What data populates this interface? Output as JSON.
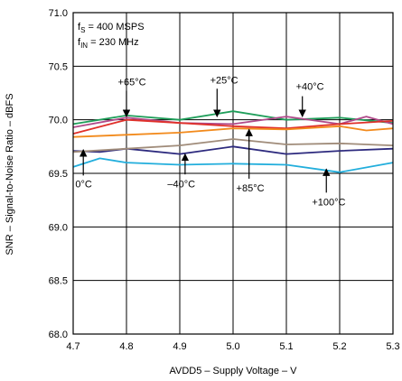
{
  "chart_data": {
    "type": "line",
    "xlabel": "AVDD5 – Supply Voltage – V",
    "ylabel": "SNR – Signal-to-Noise Ratio – dBFS",
    "xlim": [
      4.7,
      5.3
    ],
    "ylim": [
      68.0,
      71.0
    ],
    "x_ticks": [
      "4.7",
      "4.8",
      "4.9",
      "5.0",
      "5.1",
      "5.2",
      "5.3"
    ],
    "y_ticks": [
      "71.0",
      "70.5",
      "70.0",
      "69.5",
      "69.0",
      "68.5",
      "68.0"
    ],
    "grid": true,
    "conditions": {
      "fs": {
        "main": "f",
        "sub": "S",
        "rest": " = 400 MSPS"
      },
      "fin": {
        "main": "f",
        "sub": "IN",
        "rest": " = 230 MHz"
      }
    },
    "series": [
      {
        "name": "0°C",
        "color": "#2D2A7E",
        "x": [
          4.7,
          4.75,
          4.8,
          4.9,
          5.0,
          5.1,
          5.2,
          5.3
        ],
        "y": [
          69.71,
          69.7,
          69.73,
          69.68,
          69.75,
          69.68,
          69.71,
          69.73
        ]
      },
      {
        "name": "–40°C",
        "color": "#A08C7A",
        "x": [
          4.7,
          4.8,
          4.9,
          5.0,
          5.1,
          5.2,
          5.25,
          5.3
        ],
        "y": [
          69.7,
          69.73,
          69.76,
          69.82,
          69.77,
          69.78,
          69.77,
          69.76
        ]
      },
      {
        "name": "+25°C",
        "color": "#1F9E5A",
        "x": [
          4.7,
          4.8,
          4.9,
          5.0,
          5.1,
          5.2,
          5.3
        ],
        "y": [
          69.96,
          70.04,
          70.0,
          70.08,
          70.0,
          70.02,
          69.97
        ]
      },
      {
        "name": "+40°C",
        "color": "#B04A8A",
        "x": [
          4.7,
          4.8,
          4.9,
          5.0,
          5.1,
          5.2,
          5.25,
          5.3
        ],
        "y": [
          69.93,
          70.02,
          69.97,
          69.96,
          70.03,
          69.96,
          70.03,
          69.96
        ]
      },
      {
        "name": "+65°C",
        "color": "#E0302A",
        "x": [
          4.7,
          4.8,
          4.9,
          5.0,
          5.1,
          5.2,
          5.3
        ],
        "y": [
          69.87,
          70.0,
          69.97,
          69.94,
          69.92,
          69.96,
          69.99
        ]
      },
      {
        "name": "+85°C",
        "color": "#F28A1C",
        "x": [
          4.7,
          4.8,
          4.9,
          5.0,
          5.1,
          5.2,
          5.25,
          5.3
        ],
        "y": [
          69.84,
          69.86,
          69.88,
          69.92,
          69.91,
          69.94,
          69.9,
          69.92
        ]
      },
      {
        "name": "+100°C",
        "color": "#22AEDC",
        "x": [
          4.7,
          4.75,
          4.8,
          4.9,
          5.0,
          5.1,
          5.2,
          5.3
        ],
        "y": [
          69.56,
          69.64,
          69.6,
          69.58,
          69.59,
          69.58,
          69.51,
          69.6
        ]
      }
    ],
    "annotations": [
      {
        "text": "+65°C",
        "label_at": [
          4.784,
          70.32
        ],
        "arrow_from": [
          4.8,
          70.27
        ],
        "arrow_to": [
          4.8,
          70.03
        ]
      },
      {
        "text": "+25°C",
        "label_at": [
          4.957,
          70.34
        ],
        "arrow_from": [
          4.97,
          70.29
        ],
        "arrow_to": [
          4.97,
          70.03
        ]
      },
      {
        "text": "+40°C",
        "label_at": [
          5.118,
          70.28
        ],
        "arrow_from": [
          5.13,
          70.22
        ],
        "arrow_to": [
          5.13,
          70.03
        ]
      },
      {
        "text": "0°C",
        "label_at": [
          4.704,
          69.37
        ],
        "arrow_from": [
          4.719,
          69.48
        ],
        "arrow_to": [
          4.719,
          69.72
        ]
      },
      {
        "text": "–40°C",
        "label_at": [
          4.877,
          69.37
        ],
        "arrow_from": [
          4.91,
          69.49
        ],
        "arrow_to": [
          4.91,
          69.68
        ]
      },
      {
        "text": "+85°C",
        "label_at": [
          5.006,
          69.33
        ],
        "arrow_from": [
          5.03,
          69.45
        ],
        "arrow_to": [
          5.03,
          69.91
        ]
      },
      {
        "text": "+100°C",
        "label_at": [
          5.148,
          69.2
        ],
        "arrow_from": [
          5.175,
          69.32
        ],
        "arrow_to": [
          5.175,
          69.54
        ]
      }
    ]
  }
}
